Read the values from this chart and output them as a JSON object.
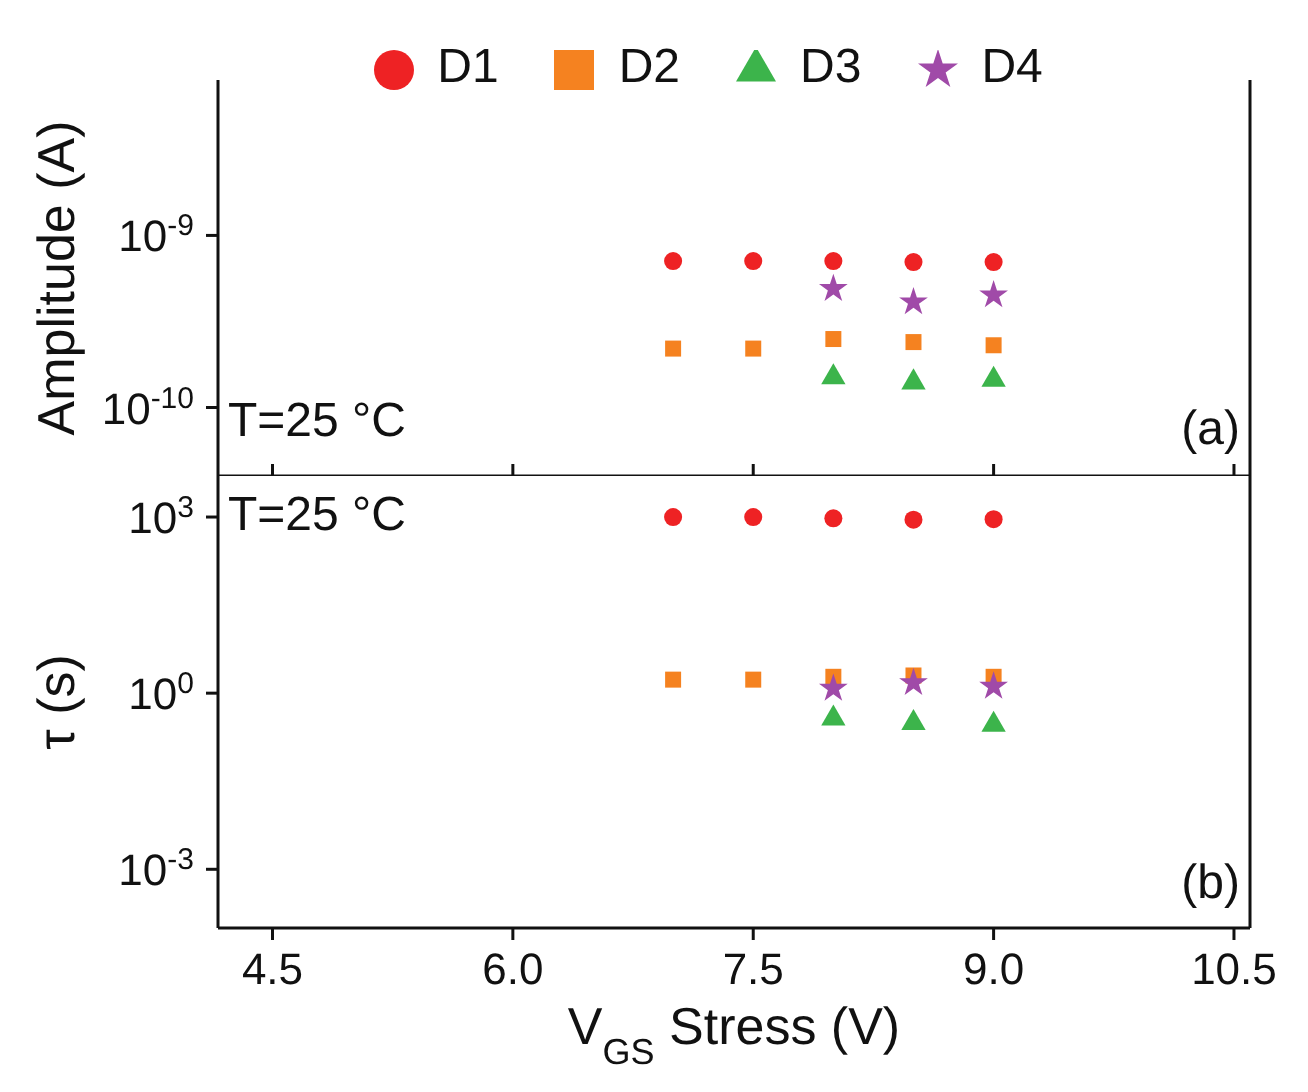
{
  "chart_data": [
    {
      "type": "scatter",
      "ylabel": "Amplitude (A)",
      "log": "y",
      "x": [
        7,
        7.5,
        8,
        8.5,
        9
      ],
      "xlim": [
        4.16,
        10.6
      ],
      "xticks": [
        4.5,
        6,
        7.5,
        9,
        10.5
      ],
      "ylim": [
        4e-11,
        8e-09
      ],
      "yticks": [
        {
          "value": 1e-10,
          "label": "10$^{-10}$"
        },
        {
          "value": 1e-09,
          "label": "10$^{-9}$"
        }
      ],
      "tick_labels": "y",
      "grid": false,
      "legend": "top",
      "annotations": [
        "T=25 °C",
        "(a)"
      ],
      "series": [
        {
          "name": "D1",
          "color": "#ee2224",
          "marker": "circle",
          "values": [
            7.1e-10,
            7.1e-10,
            7.1e-10,
            7e-10,
            7e-10
          ]
        },
        {
          "name": "D2",
          "color": "#f58220",
          "marker": "square",
          "values": [
            2.2e-10,
            2.2e-10,
            2.5e-10,
            2.4e-10,
            2.3e-10
          ]
        },
        {
          "name": "D3",
          "color": "#3cb44b",
          "marker": "triangle",
          "values": [
            null,
            null,
            1.5e-10,
            1.4e-10,
            1.45e-10
          ]
        },
        {
          "name": "D4",
          "color": "#a04aa8",
          "marker": "star",
          "values": [
            null,
            null,
            4.9e-10,
            4.1e-10,
            4.5e-10
          ]
        }
      ]
    },
    {
      "type": "scatter",
      "xlabel": "V$_{GS}$ Stress (V)",
      "ylabel": "τ (s)",
      "log": "y",
      "x": [
        7,
        7.5,
        8,
        8.5,
        9
      ],
      "xlim": [
        4.16,
        10.6
      ],
      "xticks": [
        4.5,
        {
          "value": 6,
          "label": "6.0"
        },
        7.5,
        {
          "value": 9,
          "label": "9.0"
        },
        10.5
      ],
      "ylim": [
        0.0001,
        5000.0
      ],
      "yticks": [
        {
          "value": 0.001,
          "label": "10$^{-3}$"
        },
        {
          "value": 1,
          "label": "10$^{0}$"
        },
        {
          "value": 1000.0,
          "label": "10$^{3}$"
        }
      ],
      "grid": false,
      "annotations": [
        "T=25 °C",
        "(b)"
      ],
      "series": [
        {
          "color": "#ee2224",
          "marker": "circle",
          "values": [
            1000,
            1000,
            950,
            900,
            920
          ]
        },
        {
          "color": "#f58220",
          "marker": "square",
          "values": [
            1.7,
            1.7,
            1.9,
            2.0,
            1.9
          ]
        },
        {
          "color": "#3cb44b",
          "marker": "triangle",
          "values": [
            null,
            null,
            0.37,
            0.31,
            0.29
          ]
        },
        {
          "color": "#a04aa8",
          "marker": "star",
          "values": [
            null,
            null,
            1.2,
            1.5,
            1.3
          ]
        }
      ]
    }
  ]
}
